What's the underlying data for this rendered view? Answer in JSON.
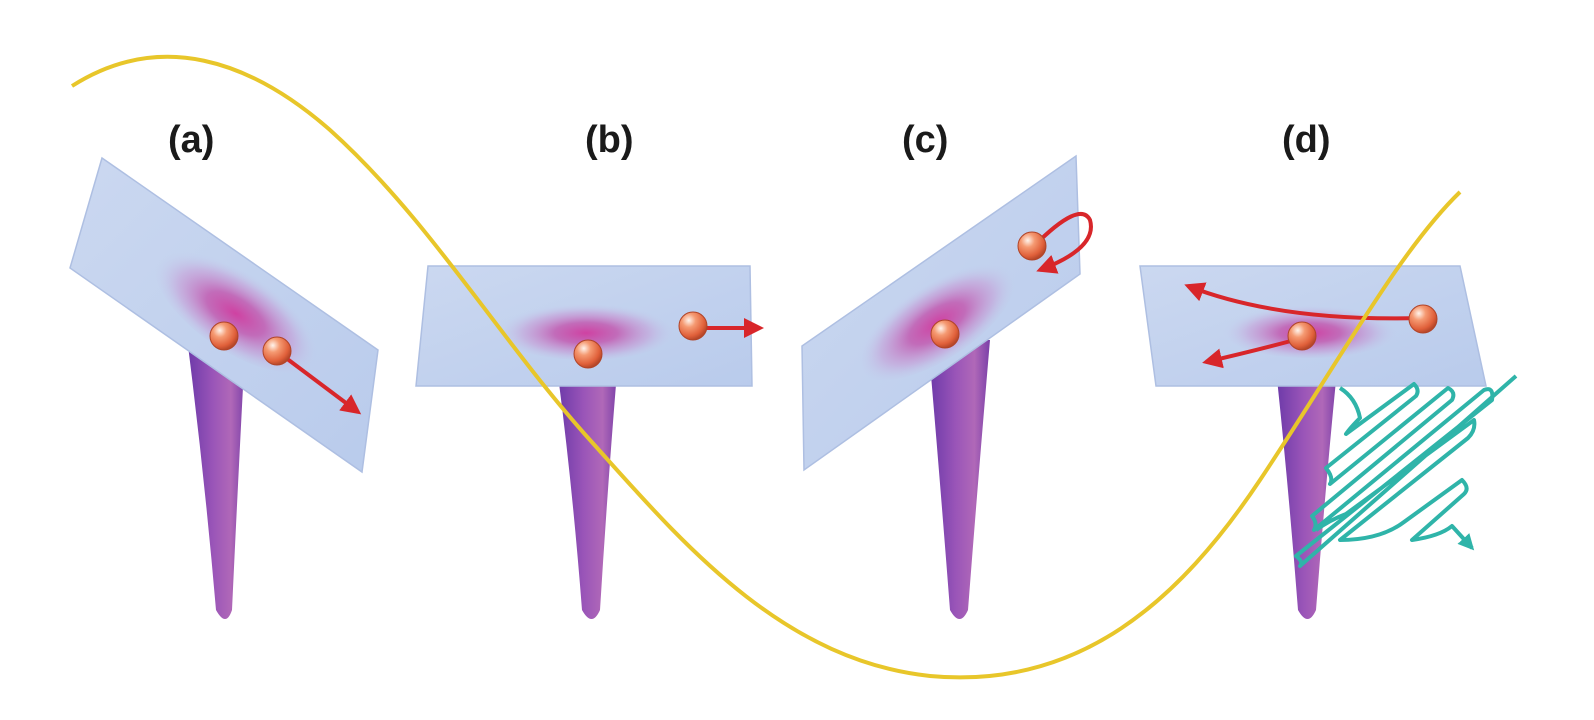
{
  "panels": [
    {
      "label": "(a)"
    },
    {
      "label": "(b)"
    },
    {
      "label": "(c)"
    },
    {
      "label": "(d)"
    }
  ],
  "colors": {
    "field_wave": "#e8c62a",
    "surface": "#c2d2ee",
    "surface_edge": "#a9bde4",
    "well": "#b14fb4",
    "tip": "#8a46b0",
    "electron": "#f07a55",
    "trajectory": "#d8262a",
    "emission": "#2fb4a9"
  }
}
